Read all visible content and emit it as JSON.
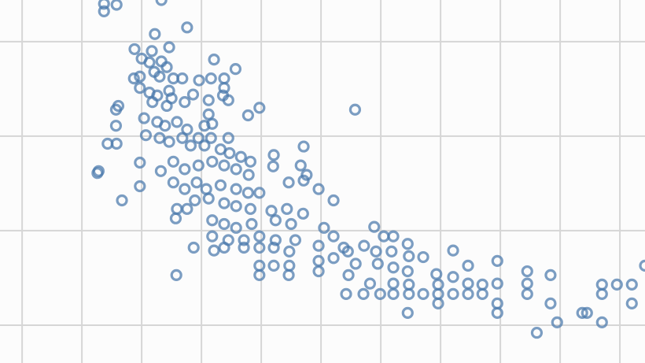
{
  "chart_data": {
    "type": "scatter",
    "title": "",
    "xlabel": "",
    "ylabel": "",
    "xlim": [
      -0.37,
      10.42
    ],
    "ylim": [
      -0.4,
      3.44
    ],
    "grid": true,
    "grid_step": 1,
    "legend": "none",
    "marker": "hollow-circle",
    "colors": {
      "marker": "#4a78ac",
      "grid": "#d6d6d6",
      "background": "#fcfcfc"
    },
    "points": [
      [
        1.37,
        3.32
      ],
      [
        1.37,
        3.4
      ],
      [
        1.58,
        3.39
      ],
      [
        2.33,
        3.44
      ],
      [
        2.22,
        3.08
      ],
      [
        2.76,
        3.15
      ],
      [
        1.88,
        2.92
      ],
      [
        2.17,
        2.9
      ],
      [
        2.46,
        2.94
      ],
      [
        2.0,
        2.82
      ],
      [
        2.13,
        2.78
      ],
      [
        2.33,
        2.79
      ],
      [
        2.42,
        2.73
      ],
      [
        3.21,
        2.81
      ],
      [
        3.57,
        2.71
      ],
      [
        2.21,
        2.68
      ],
      [
        2.3,
        2.63
      ],
      [
        2.53,
        2.61
      ],
      [
        2.68,
        2.61
      ],
      [
        1.87,
        2.61
      ],
      [
        1.97,
        2.63
      ],
      [
        2.96,
        2.59
      ],
      [
        3.16,
        2.61
      ],
      [
        3.38,
        2.61
      ],
      [
        3.38,
        2.51
      ],
      [
        1.97,
        2.51
      ],
      [
        2.13,
        2.46
      ],
      [
        2.26,
        2.43
      ],
      [
        2.46,
        2.48
      ],
      [
        2.5,
        2.4
      ],
      [
        2.86,
        2.44
      ],
      [
        3.12,
        2.38
      ],
      [
        3.45,
        2.38
      ],
      [
        3.36,
        2.43
      ],
      [
        1.61,
        2.32
      ],
      [
        1.57,
        2.28
      ],
      [
        2.18,
        2.36
      ],
      [
        2.42,
        2.32
      ],
      [
        2.72,
        2.36
      ],
      [
        3.97,
        2.3
      ],
      [
        3.78,
        2.22
      ],
      [
        3.12,
        2.23
      ],
      [
        5.57,
        2.28
      ],
      [
        1.57,
        2.11
      ],
      [
        2.04,
        2.19
      ],
      [
        2.26,
        2.15
      ],
      [
        2.39,
        2.11
      ],
      [
        2.59,
        2.15
      ],
      [
        2.76,
        2.07
      ],
      [
        3.05,
        2.11
      ],
      [
        3.18,
        2.13
      ],
      [
        2.07,
        2.01
      ],
      [
        2.3,
        1.98
      ],
      [
        2.46,
        1.94
      ],
      [
        2.68,
        1.98
      ],
      [
        2.95,
        1.98
      ],
      [
        3.16,
        1.98
      ],
      [
        3.45,
        1.98
      ],
      [
        1.43,
        1.92
      ],
      [
        1.58,
        1.92
      ],
      [
        2.82,
        1.9
      ],
      [
        3.05,
        1.9
      ],
      [
        3.32,
        1.86
      ],
      [
        3.47,
        1.82
      ],
      [
        3.66,
        1.78
      ],
      [
        3.82,
        1.73
      ],
      [
        4.21,
        1.8
      ],
      [
        4.2,
        1.68
      ],
      [
        4.71,
        1.89
      ],
      [
        1.97,
        1.72
      ],
      [
        2.32,
        1.63
      ],
      [
        2.53,
        1.73
      ],
      [
        2.72,
        1.65
      ],
      [
        2.95,
        1.69
      ],
      [
        3.18,
        1.73
      ],
      [
        3.38,
        1.69
      ],
      [
        3.58,
        1.65
      ],
      [
        3.79,
        1.59
      ],
      [
        4.66,
        1.69
      ],
      [
        4.76,
        1.59
      ],
      [
        1.28,
        1.63
      ],
      [
        1.26,
        1.61
      ],
      [
        1.97,
        1.47
      ],
      [
        2.53,
        1.51
      ],
      [
        2.72,
        1.44
      ],
      [
        2.92,
        1.51
      ],
      [
        3.08,
        1.44
      ],
      [
        3.32,
        1.48
      ],
      [
        3.58,
        1.44
      ],
      [
        3.78,
        1.4
      ],
      [
        3.97,
        1.4
      ],
      [
        4.46,
        1.51
      ],
      [
        4.71,
        1.53
      ],
      [
        4.96,
        1.44
      ],
      [
        1.67,
        1.32
      ],
      [
        2.89,
        1.32
      ],
      [
        3.12,
        1.34
      ],
      [
        3.38,
        1.29
      ],
      [
        3.58,
        1.26
      ],
      [
        3.82,
        1.23
      ],
      [
        4.17,
        1.21
      ],
      [
        4.43,
        1.23
      ],
      [
        4.7,
        1.18
      ],
      [
        5.21,
        1.32
      ],
      [
        2.59,
        1.23
      ],
      [
        2.76,
        1.23
      ],
      [
        2.57,
        1.13
      ],
      [
        3.18,
        1.11
      ],
      [
        3.38,
        1.07
      ],
      [
        3.58,
        1.03
      ],
      [
        3.84,
        1.07
      ],
      [
        4.24,
        1.11
      ],
      [
        4.5,
        1.07
      ],
      [
        5.05,
        1.03
      ],
      [
        5.21,
        0.94
      ],
      [
        3.18,
        0.94
      ],
      [
        3.45,
        0.9
      ],
      [
        3.71,
        0.9
      ],
      [
        3.97,
        0.94
      ],
      [
        4.24,
        0.9
      ],
      [
        4.57,
        0.9
      ],
      [
        2.87,
        0.82
      ],
      [
        3.21,
        0.79
      ],
      [
        3.38,
        0.82
      ],
      [
        3.71,
        0.82
      ],
      [
        3.97,
        0.82
      ],
      [
        4.21,
        0.82
      ],
      [
        4.47,
        0.78
      ],
      [
        4.96,
        0.84
      ],
      [
        5.38,
        0.82
      ],
      [
        5.72,
        0.84
      ],
      [
        5.89,
        1.04
      ],
      [
        6.05,
        0.94
      ],
      [
        6.21,
        0.94
      ],
      [
        6.45,
        0.86
      ],
      [
        6.71,
        0.72
      ],
      [
        7.21,
        0.79
      ],
      [
        5.45,
        0.78
      ],
      [
        5.92,
        0.78
      ],
      [
        6.18,
        0.78
      ],
      [
        6.47,
        0.73
      ],
      [
        3.97,
        0.63
      ],
      [
        4.21,
        0.63
      ],
      [
        4.47,
        0.63
      ],
      [
        4.96,
        0.68
      ],
      [
        5.21,
        0.71
      ],
      [
        5.58,
        0.65
      ],
      [
        5.95,
        0.65
      ],
      [
        6.21,
        0.61
      ],
      [
        6.45,
        0.57
      ],
      [
        6.93,
        0.54
      ],
      [
        7.46,
        0.63
      ],
      [
        7.95,
        0.68
      ],
      [
        8.45,
        0.57
      ],
      [
        8.84,
        0.53
      ],
      [
        2.58,
        0.53
      ],
      [
        3.97,
        0.53
      ],
      [
        4.46,
        0.53
      ],
      [
        4.96,
        0.57
      ],
      [
        5.46,
        0.53
      ],
      [
        5.82,
        0.44
      ],
      [
        6.21,
        0.44
      ],
      [
        6.47,
        0.43
      ],
      [
        6.96,
        0.43
      ],
      [
        7.21,
        0.51
      ],
      [
        7.46,
        0.44
      ],
      [
        7.7,
        0.43
      ],
      [
        7.95,
        0.44
      ],
      [
        8.45,
        0.44
      ],
      [
        9.7,
        0.43
      ],
      [
        9.95,
        0.43
      ],
      [
        10.2,
        0.43
      ],
      [
        10.42,
        0.63
      ],
      [
        5.42,
        0.33
      ],
      [
        5.71,
        0.33
      ],
      [
        5.99,
        0.33
      ],
      [
        6.21,
        0.33
      ],
      [
        6.47,
        0.33
      ],
      [
        6.71,
        0.33
      ],
      [
        6.96,
        0.33
      ],
      [
        7.21,
        0.33
      ],
      [
        7.46,
        0.33
      ],
      [
        7.7,
        0.33
      ],
      [
        7.95,
        0.23
      ],
      [
        8.45,
        0.33
      ],
      [
        8.84,
        0.23
      ],
      [
        9.7,
        0.33
      ],
      [
        10.2,
        0.23
      ],
      [
        6.45,
        0.13
      ],
      [
        6.96,
        0.23
      ],
      [
        7.95,
        0.13
      ],
      [
        8.61,
        -0.08
      ],
      [
        8.95,
        0.03
      ],
      [
        9.37,
        0.13
      ],
      [
        9.45,
        0.13
      ],
      [
        9.7,
        0.03
      ]
    ]
  }
}
